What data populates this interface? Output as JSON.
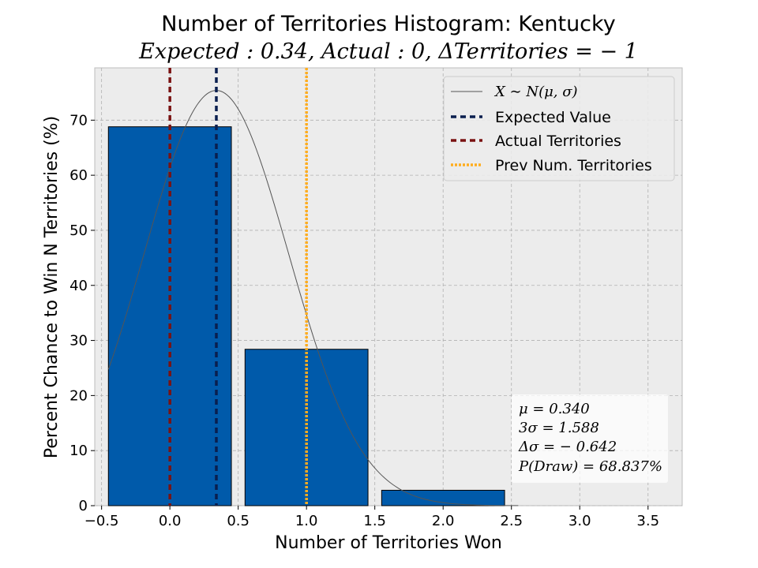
{
  "chart_data": {
    "type": "bar",
    "title": "Number of Territories Histogram: Kentucky",
    "subtitle": "Expected : 0.34, Actual : 0, ΔTerritories = − 1",
    "xlabel": "Number of Territories Won",
    "ylabel": "Percent Chance to Win N Territories (%)",
    "xlim": [
      -0.55,
      3.75
    ],
    "ylim": [
      0,
      79.5
    ],
    "xticks": [
      -0.5,
      0.0,
      0.5,
      1.0,
      1.5,
      2.0,
      2.5,
      3.0,
      3.5
    ],
    "xtick_labels": [
      "−0.5",
      "0.0",
      "0.5",
      "1.0",
      "1.5",
      "2.0",
      "2.5",
      "3.0",
      "3.5"
    ],
    "yticks": [
      0,
      10,
      20,
      30,
      40,
      50,
      60,
      70
    ],
    "ytick_labels": [
      "0",
      "10",
      "20",
      "30",
      "40",
      "50",
      "60",
      "70"
    ],
    "grid": true,
    "bar_width": 0.9,
    "bars": [
      {
        "x": 0,
        "value": 68.8
      },
      {
        "x": 1,
        "value": 28.4
      },
      {
        "x": 2,
        "value": 2.8
      }
    ],
    "normal_curve": {
      "mu": 0.34,
      "sigma": 0.5293,
      "peak": 75.4
    },
    "vlines": {
      "expected": 0.34,
      "actual": 0,
      "previous": 1
    },
    "legend": {
      "placement": "top-right",
      "entries": [
        {
          "key": "normal",
          "label_math": "X ∼ N(μ, σ)"
        },
        {
          "key": "expected",
          "label": "Expected Value"
        },
        {
          "key": "actual",
          "label": "Actual Territories"
        },
        {
          "key": "previous",
          "label": "Prev Num. Territories"
        }
      ]
    },
    "stats_box": [
      "μ = 0.340",
      "3σ = 1.588",
      "Δσ = − 0.642",
      "P(Draw) = 68.837%"
    ],
    "colors": {
      "bar": "#005aaa",
      "bar_edge": "#000000",
      "expected": "#0a1f4f",
      "actual": "#7a1212",
      "previous": "#ffad1f",
      "curve": "#555555",
      "plot_bg": "#ececec",
      "grid": "#b0b0b0"
    }
  }
}
